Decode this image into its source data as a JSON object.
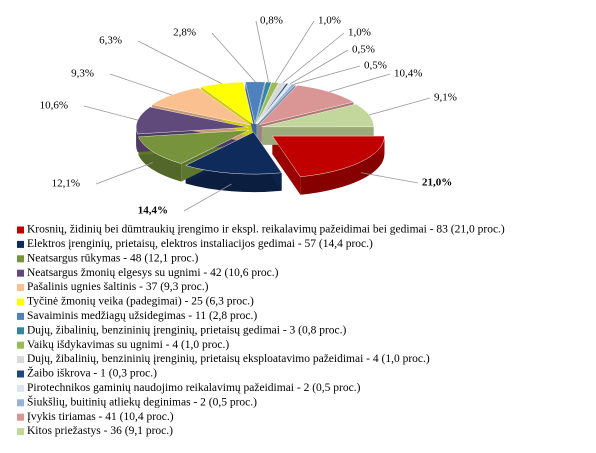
{
  "chart_data": {
    "type": "pie3d",
    "categories": [
      "Krosnių, židinių bei dūmtraukių įrengimo ir ekspl. reikalavimų pažeidimai bei gedimai - 83 (21,0 proc.)",
      "Elektros įrenginių, prietaisų, elektros instaliacijos gedimai - 57 (14,4 proc.)",
      "Neatsargus rūkymas - 48 (12,1 proc.)",
      "Neatsargus žmonių elgesys su ugnimi - 42 (10,6 proc.)",
      "Pašalinis ugnies šaltinis - 37 (9,3 proc.)",
      "Tyčinė žmonių veika (padegimai) - 25 (6,3 proc.)",
      "Savaiminis medžiagų užsidegimas - 11 (2,8 proc.)",
      "Dujų, žibalinių, benzininių įrenginių, prietaisų gedimai - 3 (0,8 proc.)",
      "Vaikų išdykavimas su ugnimi - 4 (1,0 proc.)",
      "Dujų, žibalinių, benzininių įrenginių, prietaisų eksploatavimo pažeidimai - 4 (1,0 proc.)",
      "Žaibo iškrova - 1 (0,3 proc.)",
      "Pirotechnikos gaminių naudojimo reikalavimų pažeidimai - 2 (0,5 proc.)",
      "Šiukšlių, buitinių atliekų deginimas - 2 (0,5 proc.)",
      "Įvykis tiriamas - 41 (10,4 proc.)",
      "Kitos priežastys - 36 (9,1 proc.)"
    ],
    "values": [
      21.0,
      14.4,
      12.1,
      10.6,
      9.3,
      6.3,
      2.8,
      0.8,
      1.0,
      1.0,
      0.3,
      0.5,
      0.5,
      10.4,
      9.1
    ],
    "value_labels": [
      "21,0%",
      "14,4%",
      "12,1%",
      "10,6%",
      "9,3%",
      "6,3%",
      "2,8%",
      "0,8%",
      "1,0%",
      "1,0%",
      null,
      "0,5%",
      "0,5%",
      "10,4%",
      "9,1%"
    ],
    "colors": [
      "#c00000",
      "#0f2b5b",
      "#77933c",
      "#604a7b",
      "#fac090",
      "#ffff00",
      "#4f81bd",
      "#31859c",
      "#9bbb59",
      "#d9d9d9",
      "#1f497d",
      "#dce6f2",
      "#95b3d7",
      "#d99694",
      "#c3d69b"
    ]
  }
}
